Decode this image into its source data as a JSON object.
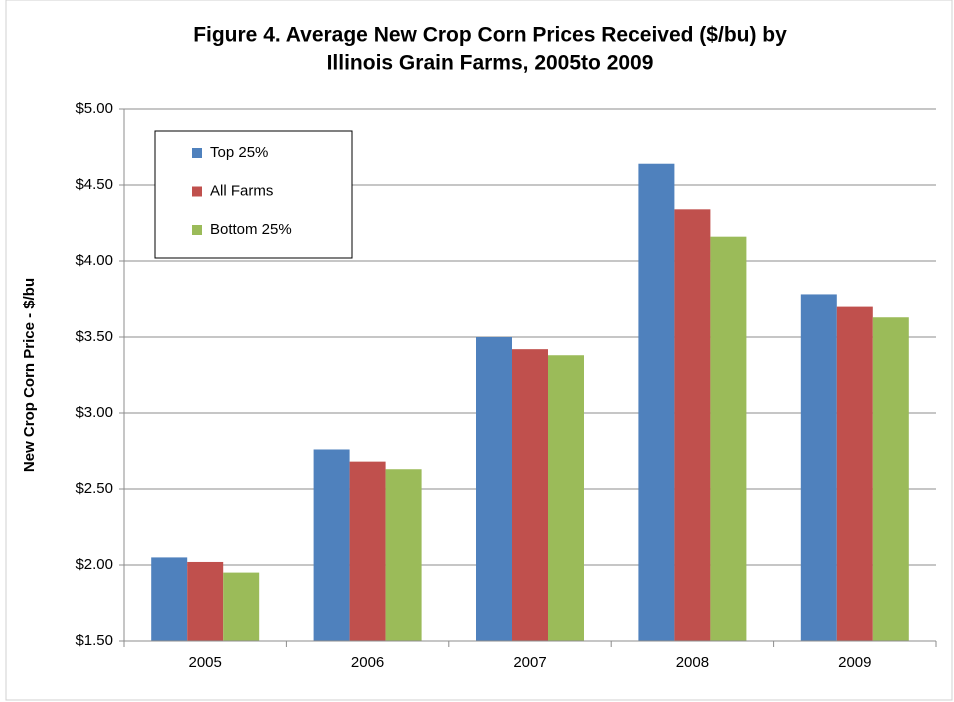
{
  "chart_data": {
    "type": "bar",
    "title": [
      "Figure 4. Average New Crop Corn Prices Received ($/bu) by",
      "Illinois Grain Farms, 2005to 2009"
    ],
    "y_label": "New Crop Corn Price - $/bu",
    "categories": [
      "2005",
      "2006",
      "2007",
      "2008",
      "2009"
    ],
    "series": [
      {
        "name": "Top 25%",
        "color": "#4f81bd",
        "values": [
          2.05,
          2.76,
          3.5,
          4.64,
          3.78
        ]
      },
      {
        "name": "All Farms",
        "color": "#c0504d",
        "values": [
          2.02,
          2.68,
          3.42,
          4.34,
          3.7
        ]
      },
      {
        "name": "Bottom 25%",
        "color": "#9bbb59",
        "values": [
          1.95,
          2.63,
          3.38,
          4.16,
          3.63
        ]
      }
    ],
    "ylim": [
      1.5,
      5.0
    ],
    "yticks": [
      {
        "value": 1.5,
        "label": "$1.50"
      },
      {
        "value": 2.0,
        "label": "$2.00"
      },
      {
        "value": 2.5,
        "label": "$2.50"
      },
      {
        "value": 3.0,
        "label": "$3.00"
      },
      {
        "value": 3.5,
        "label": "$3.50"
      },
      {
        "value": 4.0,
        "label": "$4.00"
      },
      {
        "value": 4.5,
        "label": "$4.50"
      },
      {
        "value": 5.0,
        "label": "$5.00"
      }
    ],
    "grid": true,
    "legend": "upper left"
  }
}
